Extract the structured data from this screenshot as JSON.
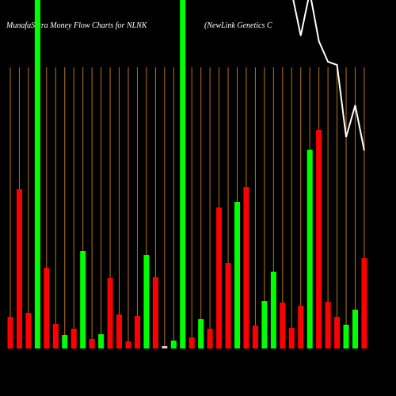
{
  "chart_data": {
    "type": "bar",
    "title": "MunafaSutra  Money Flow  Charts for NLNK",
    "subtitle": "(NewLink Genetics C",
    "categories": [
      null,
      null,
      null,
      null,
      null,
      null,
      null,
      null,
      null,
      null,
      null,
      null,
      null,
      null,
      null,
      null,
      null,
      null,
      null,
      null,
      null,
      null,
      null,
      null,
      null,
      null,
      null,
      null,
      null,
      null,
      null,
      null,
      null,
      null,
      null,
      null,
      null,
      null,
      null,
      null
    ],
    "values": [
      40,
      201,
      45,
      440,
      102,
      31,
      17,
      25,
      123,
      12,
      18,
      89,
      43,
      9,
      41,
      118,
      90,
      3,
      10,
      440,
      14,
      37,
      25,
      178,
      108,
      185,
      204,
      29,
      60,
      97,
      58,
      26,
      54,
      251,
      276,
      59,
      40,
      30,
      49,
      114
    ],
    "colors": [
      "#f00",
      "#f00",
      "#f00",
      "#0f0",
      "#f00",
      "#f00",
      "#0f0",
      "#f00",
      "#0f0",
      "#f00",
      "#0f0",
      "#f00",
      "#f00",
      "#f00",
      "#f00",
      "#0f0",
      "#f00",
      "#ccc",
      "#0f0",
      "#0f0",
      "#f00",
      "#0f0",
      "#f00",
      "#f00",
      "#f00",
      "#0f0",
      "#f00",
      "#f00",
      "#0f0",
      "#0f0",
      "#f00",
      "#f00",
      "#f00",
      "#0f0",
      "#f00",
      "#f00",
      "#f00",
      "#0f0",
      "#0f0",
      "#f00"
    ],
    "line": {
      "color": "#fff",
      "values": [
        null,
        null,
        null,
        null,
        null,
        null,
        null,
        null,
        null,
        null,
        null,
        null,
        null,
        null,
        null,
        null,
        null,
        null,
        null,
        null,
        null,
        null,
        null,
        null,
        null,
        null,
        null,
        null,
        null,
        null,
        null,
        450,
        395,
        450,
        388,
        362,
        358,
        267,
        307,
        250
      ]
    },
    "gridline_color": "#b8741a",
    "ylim": [
      0,
      440
    ]
  }
}
